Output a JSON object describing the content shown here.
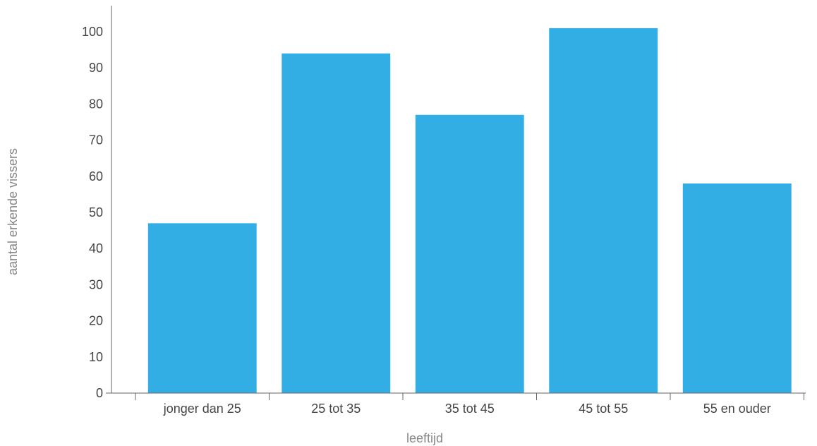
{
  "chart_data": {
    "type": "bar",
    "categories": [
      "jonger dan 25",
      "25 tot 35",
      "35 tot 45",
      "45 tot 55",
      "55 en ouder"
    ],
    "values": [
      47,
      94,
      77,
      101,
      58
    ],
    "title": "",
    "xlabel": "leeftijd",
    "ylabel": "aantal erkende vissers",
    "ylim": [
      0,
      100
    ],
    "yticks": [
      0,
      10,
      20,
      30,
      40,
      50,
      60,
      70,
      80,
      90,
      100
    ],
    "grid": false,
    "bar_color": "#33aee5"
  }
}
